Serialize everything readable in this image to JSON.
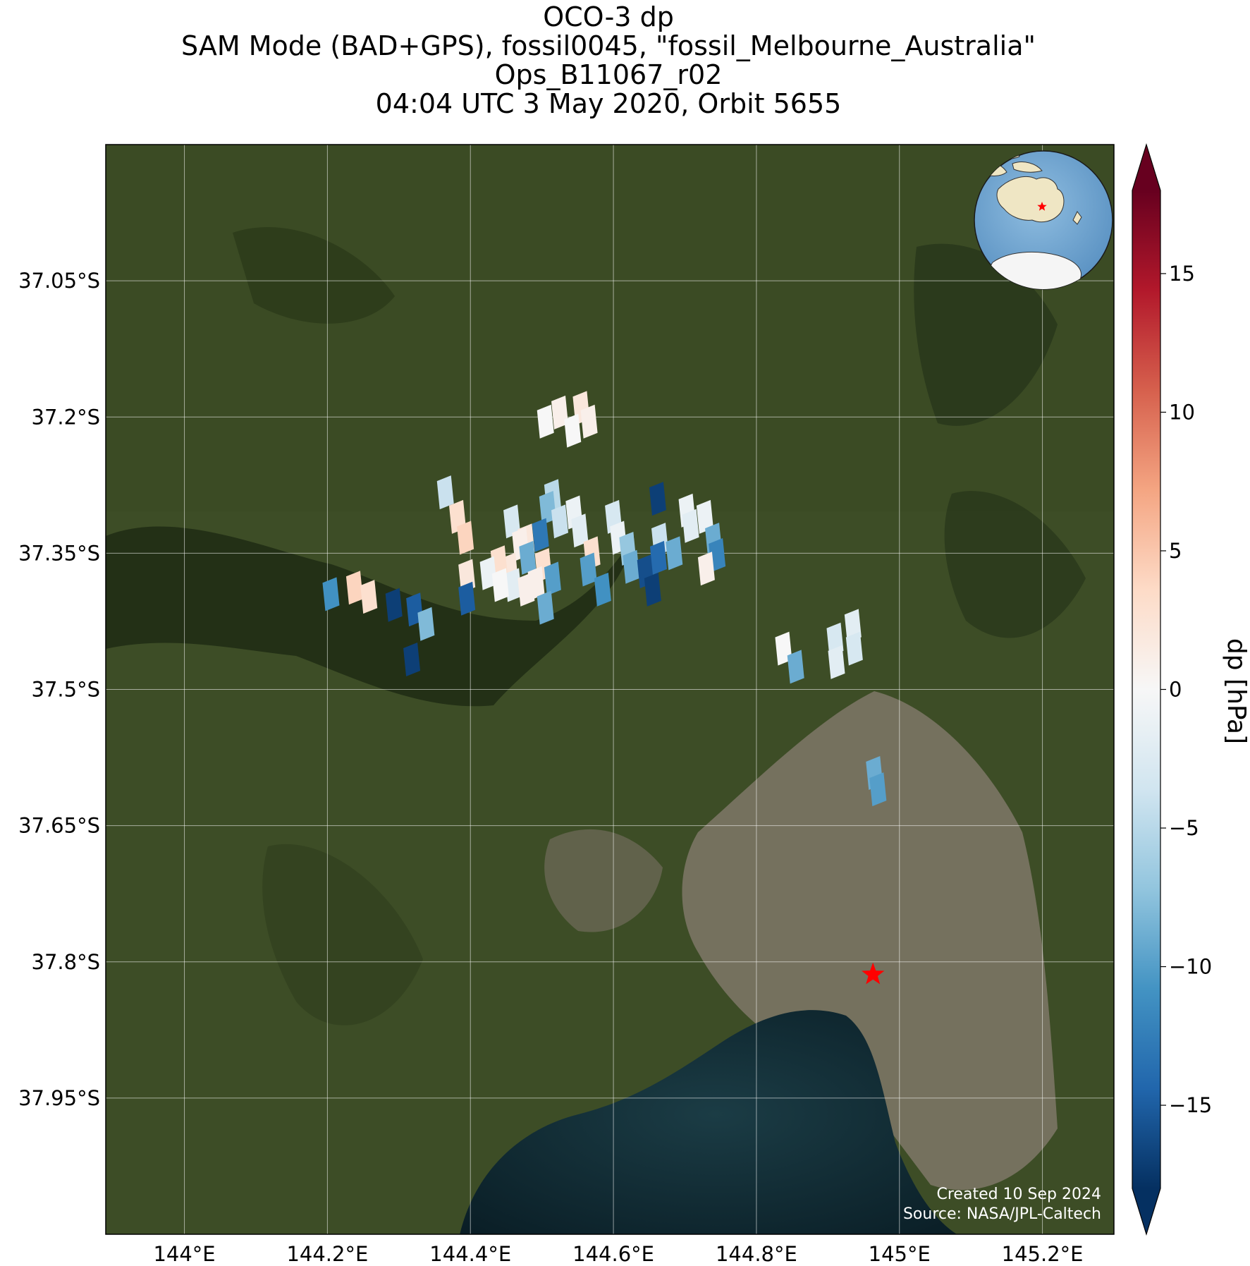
{
  "title": {
    "line1": "OCO-3 dp",
    "line2": "SAM Mode (BAD+GPS), fossil0045, \"fossil_Melbourne_Australia\"",
    "line3": "Ops_B11067_r02",
    "line4": "04:04 UTC 3 May 2020, Orbit 5655"
  },
  "map": {
    "extent": {
      "lon_min": 143.89,
      "lon_max": 145.3,
      "lat_top": -36.9,
      "lat_bottom": -38.1
    },
    "x_ticks": [
      {
        "value": 144.0,
        "label": "144°E"
      },
      {
        "value": 144.2,
        "label": "144.2°E"
      },
      {
        "value": 144.4,
        "label": "144.4°E"
      },
      {
        "value": 144.6,
        "label": "144.6°E"
      },
      {
        "value": 144.8,
        "label": "144.8°E"
      },
      {
        "value": 145.0,
        "label": "145°E"
      },
      {
        "value": 145.2,
        "label": "145.2°E"
      }
    ],
    "y_ticks": [
      {
        "value": -37.05,
        "label": "37.05°S"
      },
      {
        "value": -37.2,
        "label": "37.2°S"
      },
      {
        "value": -37.35,
        "label": "37.35°S"
      },
      {
        "value": -37.5,
        "label": "37.5°S"
      },
      {
        "value": -37.65,
        "label": "37.65°S"
      },
      {
        "value": -37.8,
        "label": "37.8°S"
      },
      {
        "value": -37.95,
        "label": "37.95°S"
      }
    ],
    "target_marker": {
      "lon": 144.963,
      "lat": -37.814,
      "color": "#ff0000"
    },
    "credit_line1": "Created 10 Sep 2024",
    "credit_line2": "Source: NASA/JPL-Caltech",
    "inset_globe": {
      "center_lon": 135,
      "center_lat": -30,
      "marker_color": "#ff0000"
    }
  },
  "colorbar": {
    "label": "dp [hPa]",
    "range": [
      -18,
      18
    ],
    "cmap": "RdBu_r",
    "ticks": [
      {
        "value": 15,
        "label": "15"
      },
      {
        "value": 10,
        "label": "10"
      },
      {
        "value": 5,
        "label": "5"
      },
      {
        "value": 0,
        "label": "0"
      },
      {
        "value": -5,
        "label": "−5"
      },
      {
        "value": -10,
        "label": "−10"
      },
      {
        "value": -15,
        "label": "−15"
      }
    ]
  },
  "chart_data": {
    "type": "heatmap",
    "variable": "dp",
    "unit": "hPa",
    "soundings": [
      {
        "lon": 144.525,
        "lat": -37.195,
        "value": 1
      },
      {
        "lon": 144.555,
        "lat": -37.19,
        "value": 2
      },
      {
        "lon": 144.505,
        "lat": -37.205,
        "value": 0
      },
      {
        "lon": 144.543,
        "lat": -37.215,
        "value": 0
      },
      {
        "lon": 144.566,
        "lat": -37.205,
        "value": 1
      },
      {
        "lon": 144.365,
        "lat": -37.283,
        "value": -4
      },
      {
        "lon": 144.382,
        "lat": -37.31,
        "value": 3
      },
      {
        "lon": 144.393,
        "lat": -37.333,
        "value": 4
      },
      {
        "lon": 144.458,
        "lat": -37.315,
        "value": -3
      },
      {
        "lon": 144.478,
        "lat": -37.336,
        "value": 2
      },
      {
        "lon": 144.47,
        "lat": -37.34,
        "value": 1
      },
      {
        "lon": 144.515,
        "lat": -37.287,
        "value": -5
      },
      {
        "lon": 144.508,
        "lat": -37.3,
        "value": -8
      },
      {
        "lon": 144.525,
        "lat": -37.315,
        "value": -4
      },
      {
        "lon": 144.545,
        "lat": -37.305,
        "value": -1
      },
      {
        "lon": 144.553,
        "lat": -37.325,
        "value": -2
      },
      {
        "lon": 144.498,
        "lat": -37.33,
        "value": -13
      },
      {
        "lon": 144.48,
        "lat": -37.355,
        "value": -9
      },
      {
        "lon": 144.502,
        "lat": -37.363,
        "value": 3
      },
      {
        "lon": 144.492,
        "lat": -37.383,
        "value": 1
      },
      {
        "lon": 144.515,
        "lat": -37.378,
        "value": -10
      },
      {
        "lon": 144.505,
        "lat": -37.41,
        "value": -9
      },
      {
        "lon": 144.455,
        "lat": -37.368,
        "value": 2
      },
      {
        "lon": 144.44,
        "lat": -37.36,
        "value": 3
      },
      {
        "lon": 144.46,
        "lat": -37.385,
        "value": -2
      },
      {
        "lon": 144.478,
        "lat": -37.39,
        "value": 1
      },
      {
        "lon": 144.425,
        "lat": -37.372,
        "value": -1
      },
      {
        "lon": 144.442,
        "lat": -37.385,
        "value": 0
      },
      {
        "lon": 144.57,
        "lat": -37.35,
        "value": 3
      },
      {
        "lon": 144.565,
        "lat": -37.368,
        "value": -10
      },
      {
        "lon": 144.585,
        "lat": -37.39,
        "value": -11
      },
      {
        "lon": 144.6,
        "lat": -37.31,
        "value": -3
      },
      {
        "lon": 144.607,
        "lat": -37.333,
        "value": -1
      },
      {
        "lon": 144.62,
        "lat": -37.345,
        "value": -7
      },
      {
        "lon": 144.625,
        "lat": -37.365,
        "value": -9
      },
      {
        "lon": 144.645,
        "lat": -37.37,
        "value": -16
      },
      {
        "lon": 144.655,
        "lat": -37.39,
        "value": -17
      },
      {
        "lon": 144.662,
        "lat": -37.29,
        "value": -17
      },
      {
        "lon": 144.665,
        "lat": -37.335,
        "value": -4
      },
      {
        "lon": 144.685,
        "lat": -37.35,
        "value": -9
      },
      {
        "lon": 144.663,
        "lat": -37.355,
        "value": -14
      },
      {
        "lon": 144.703,
        "lat": -37.303,
        "value": -1
      },
      {
        "lon": 144.708,
        "lat": -37.32,
        "value": -2
      },
      {
        "lon": 144.728,
        "lat": -37.31,
        "value": -1
      },
      {
        "lon": 144.74,
        "lat": -37.335,
        "value": -9
      },
      {
        "lon": 144.745,
        "lat": -37.352,
        "value": -12
      },
      {
        "lon": 144.73,
        "lat": -37.367,
        "value": 1
      },
      {
        "lon": 144.395,
        "lat": -37.375,
        "value": 2
      },
      {
        "lon": 144.395,
        "lat": -37.4,
        "value": -15
      },
      {
        "lon": 144.205,
        "lat": -37.395,
        "value": -11
      },
      {
        "lon": 144.238,
        "lat": -37.388,
        "value": 4
      },
      {
        "lon": 144.258,
        "lat": -37.398,
        "value": 3
      },
      {
        "lon": 144.293,
        "lat": -37.407,
        "value": -17
      },
      {
        "lon": 144.322,
        "lat": -37.412,
        "value": -15
      },
      {
        "lon": 144.338,
        "lat": -37.428,
        "value": -8
      },
      {
        "lon": 144.318,
        "lat": -37.467,
        "value": -17
      },
      {
        "lon": 144.838,
        "lat": -37.455,
        "value": 0
      },
      {
        "lon": 144.855,
        "lat": -37.475,
        "value": -9
      },
      {
        "lon": 144.91,
        "lat": -37.445,
        "value": -3
      },
      {
        "lon": 144.912,
        "lat": -37.47,
        "value": -2
      },
      {
        "lon": 144.935,
        "lat": -37.43,
        "value": -2
      },
      {
        "lon": 144.937,
        "lat": -37.455,
        "value": -3
      },
      {
        "lon": 144.965,
        "lat": -37.592,
        "value": -9
      },
      {
        "lon": 144.97,
        "lat": -37.61,
        "value": -10
      }
    ]
  }
}
